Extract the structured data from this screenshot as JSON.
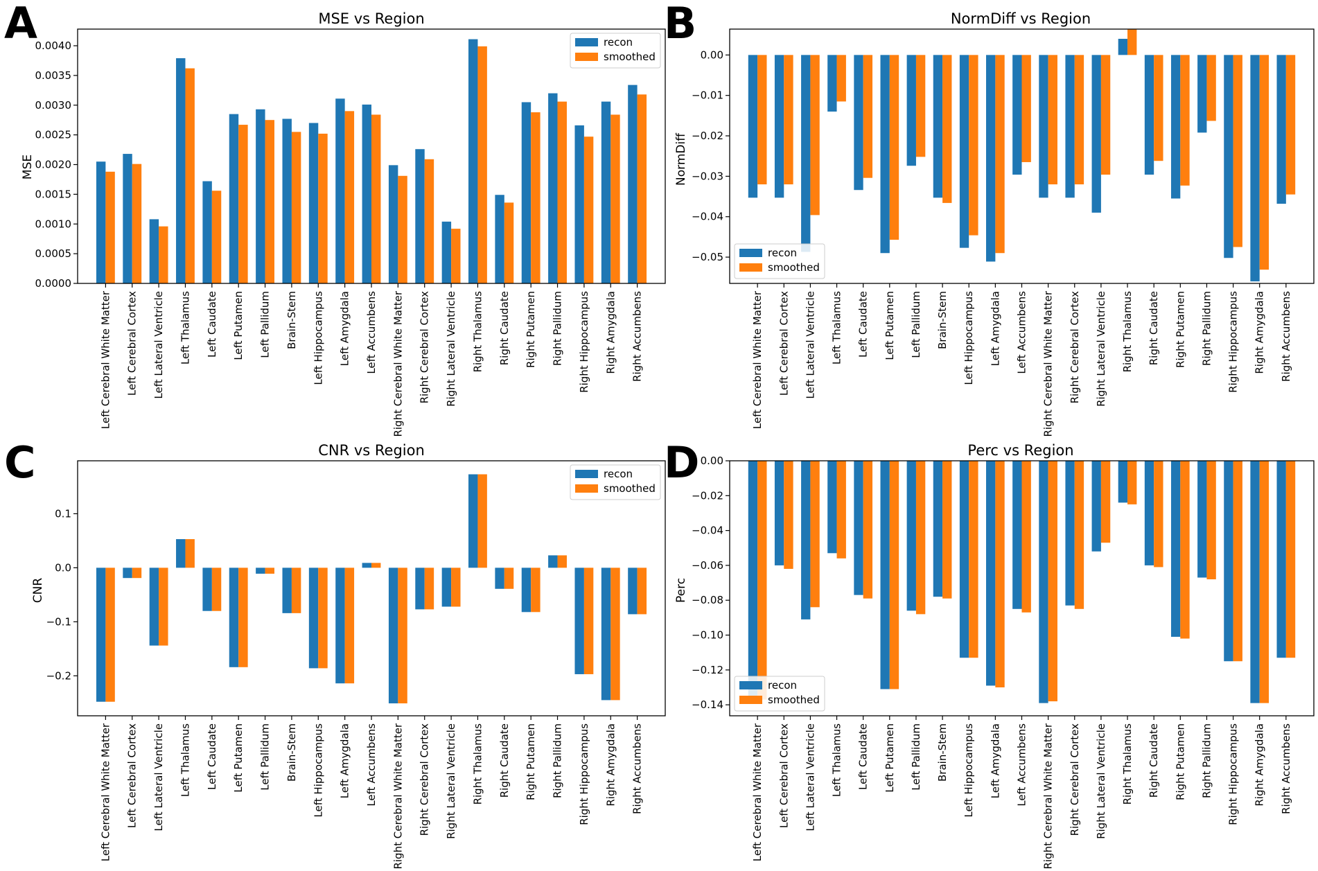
{
  "colors": {
    "recon": "#1f77b4",
    "smoothed": "#ff7f0e",
    "axis": "#000000"
  },
  "regions": [
    "Left Cerebral White Matter",
    "Left Cerebral Cortex",
    "Left Lateral Ventricle",
    "Left Thalamus",
    "Left Caudate",
    "Left Putamen",
    "Left Pallidum",
    "Brain-Stem",
    "Left Hippocampus",
    "Left Amygdala",
    "Left Accumbens",
    "Right Cerebral White Matter",
    "Right Cerebral Cortex",
    "Right Lateral Ventricle",
    "Right Thalamus",
    "Right Caudate",
    "Right Putamen",
    "Right Pallidum",
    "Right Hippocampus",
    "Right Amygdala",
    "Right Accumbens"
  ],
  "chart_data": [
    {
      "panel": "A",
      "type": "bar",
      "title": "MSE vs Region",
      "ylabel": "MSE",
      "ylim": [
        0,
        0.00428
      ],
      "yticks": [
        0.0,
        0.0005,
        0.001,
        0.0015,
        0.002,
        0.0025,
        0.003,
        0.0035,
        0.004
      ],
      "ytick_labels": [
        "0.0000",
        "0.0005",
        "0.0010",
        "0.0015",
        "0.0020",
        "0.0025",
        "0.0030",
        "0.0035",
        "0.0040"
      ],
      "legend_position": "top-right",
      "series": [
        {
          "name": "recon",
          "values": [
            0.00205,
            0.00218,
            0.00108,
            0.00379,
            0.00172,
            0.00285,
            0.00293,
            0.00277,
            0.0027,
            0.00311,
            0.00301,
            0.00199,
            0.00226,
            0.00104,
            0.00411,
            0.00149,
            0.00305,
            0.0032,
            0.00266,
            0.00306,
            0.00334
          ]
        },
        {
          "name": "smoothed",
          "values": [
            0.00188,
            0.00201,
            0.00096,
            0.00362,
            0.00156,
            0.00267,
            0.00275,
            0.00255,
            0.00252,
            0.0029,
            0.00284,
            0.00181,
            0.00209,
            0.00092,
            0.00399,
            0.00136,
            0.00288,
            0.00306,
            0.00247,
            0.00284,
            0.00318
          ]
        }
      ]
    },
    {
      "panel": "B",
      "type": "bar",
      "title": "NormDiff vs Region",
      "ylabel": "NormDiff",
      "ylim": [
        -0.0565,
        0.0064
      ],
      "yticks": [
        -0.05,
        -0.04,
        -0.03,
        -0.02,
        -0.01,
        0.0
      ],
      "ytick_labels": [
        "−0.05",
        "−0.04",
        "−0.03",
        "−0.02",
        "−0.01",
        "0.00"
      ],
      "legend_position": "bottom-left",
      "series": [
        {
          "name": "recon",
          "values": [
            -0.0353,
            -0.0353,
            -0.0487,
            -0.014,
            -0.0334,
            -0.049,
            -0.0274,
            -0.0353,
            -0.0477,
            -0.0511,
            -0.0296,
            -0.0353,
            -0.0353,
            -0.039,
            0.004,
            -0.0296,
            -0.0355,
            -0.0192,
            -0.0502,
            -0.056,
            -0.0368
          ]
        },
        {
          "name": "smoothed",
          "values": [
            -0.032,
            -0.032,
            -0.0396,
            -0.0115,
            -0.0304,
            -0.0457,
            -0.0252,
            -0.0366,
            -0.0446,
            -0.049,
            -0.0265,
            -0.032,
            -0.032,
            -0.0296,
            0.0063,
            -0.0262,
            -0.0323,
            -0.0163,
            -0.0475,
            -0.0531,
            -0.0345
          ]
        }
      ]
    },
    {
      "panel": "C",
      "type": "bar",
      "title": "CNR vs Region",
      "ylabel": "CNR",
      "ylim": [
        -0.274,
        0.198
      ],
      "yticks": [
        -0.2,
        -0.1,
        0.0,
        0.1
      ],
      "ytick_labels": [
        "−0.2",
        "−0.1",
        "0.0",
        "0.1"
      ],
      "legend_position": "top-right",
      "series": [
        {
          "name": "recon",
          "values": [
            -0.248,
            -0.019,
            -0.144,
            0.053,
            -0.08,
            -0.184,
            -0.011,
            -0.084,
            -0.186,
            -0.214,
            0.009,
            -0.251,
            -0.077,
            -0.072,
            0.173,
            -0.039,
            -0.082,
            0.023,
            -0.197,
            -0.245,
            -0.086
          ]
        },
        {
          "name": "smoothed",
          "values": [
            -0.248,
            -0.019,
            -0.144,
            0.053,
            -0.08,
            -0.184,
            -0.011,
            -0.084,
            -0.186,
            -0.214,
            0.009,
            -0.251,
            -0.077,
            -0.072,
            0.173,
            -0.039,
            -0.082,
            0.023,
            -0.197,
            -0.245,
            -0.086
          ]
        }
      ]
    },
    {
      "panel": "D",
      "type": "bar",
      "title": "Perc vs Region",
      "ylabel": "Perc",
      "ylim": [
        -0.1463,
        0.0
      ],
      "yticks": [
        -0.14,
        -0.12,
        -0.1,
        -0.08,
        -0.06,
        -0.04,
        -0.02,
        0.0
      ],
      "ytick_labels": [
        "−0.14",
        "−0.12",
        "−0.10",
        "−0.08",
        "−0.06",
        "−0.04",
        "−0.02",
        "0.00"
      ],
      "legend_position": "bottom-left",
      "series": [
        {
          "name": "recon",
          "values": [
            -0.138,
            -0.06,
            -0.091,
            -0.053,
            -0.077,
            -0.131,
            -0.086,
            -0.078,
            -0.113,
            -0.129,
            -0.085,
            -0.139,
            -0.083,
            -0.052,
            -0.024,
            -0.06,
            -0.101,
            -0.067,
            -0.115,
            -0.139,
            -0.113
          ]
        },
        {
          "name": "smoothed",
          "values": [
            -0.137,
            -0.062,
            -0.084,
            -0.056,
            -0.079,
            -0.131,
            -0.088,
            -0.079,
            -0.113,
            -0.13,
            -0.087,
            -0.138,
            -0.085,
            -0.047,
            -0.025,
            -0.061,
            -0.102,
            -0.068,
            -0.115,
            -0.139,
            -0.113
          ]
        }
      ]
    }
  ]
}
